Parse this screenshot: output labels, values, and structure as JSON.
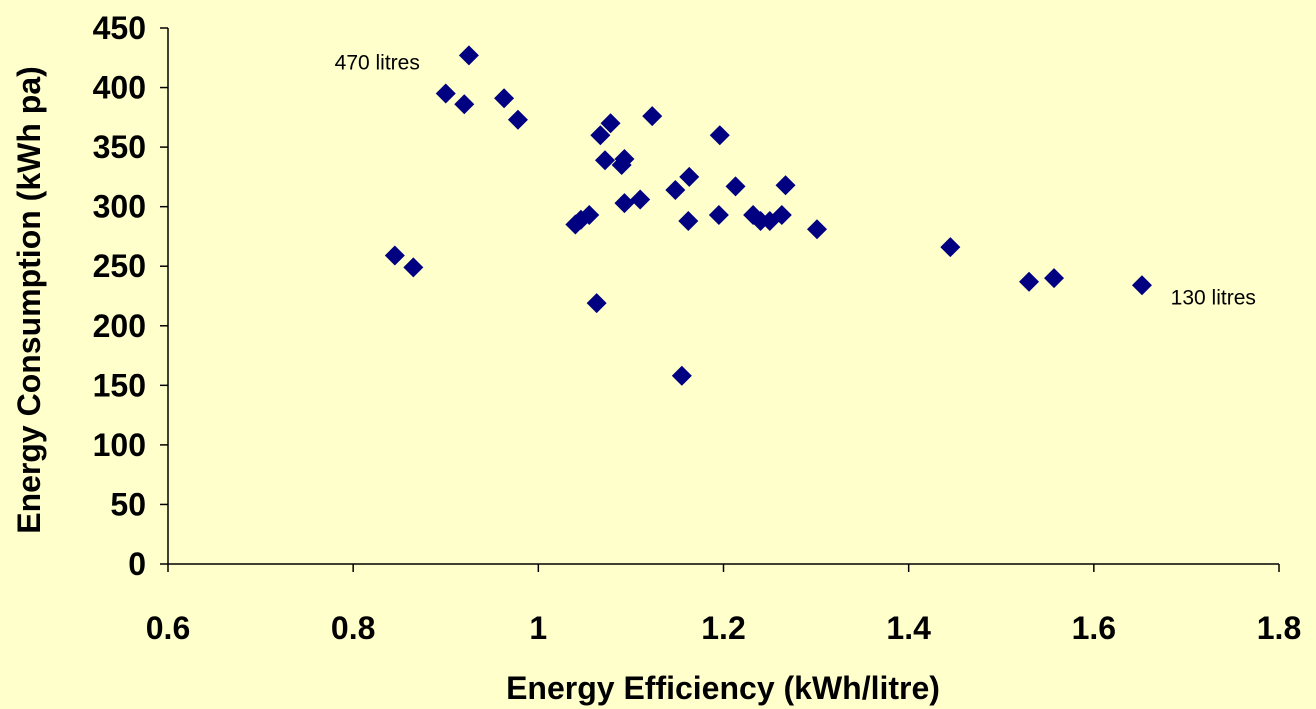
{
  "chart_data": {
    "type": "scatter",
    "title": "",
    "xlabel": "Energy Efficiency (kWh/litre)",
    "ylabel": "Energy Consumption (kWh pa)",
    "xlim": [
      0.6,
      1.8
    ],
    "ylim": [
      0,
      450
    ],
    "xticks": [
      0.6,
      0.8,
      1,
      1.2,
      1.4,
      1.6,
      1.8
    ],
    "yticks": [
      0,
      50,
      100,
      150,
      200,
      250,
      300,
      350,
      400,
      450
    ],
    "grid": false,
    "marker": "diamond",
    "marker_color": "#000080",
    "points": [
      {
        "x": 0.845,
        "y": 259
      },
      {
        "x": 0.865,
        "y": 249
      },
      {
        "x": 0.9,
        "y": 395
      },
      {
        "x": 0.92,
        "y": 386
      },
      {
        "x": 0.925,
        "y": 427
      },
      {
        "x": 0.963,
        "y": 391
      },
      {
        "x": 0.978,
        "y": 373
      },
      {
        "x": 1.04,
        "y": 285
      },
      {
        "x": 1.046,
        "y": 289
      },
      {
        "x": 1.055,
        "y": 293
      },
      {
        "x": 1.063,
        "y": 219
      },
      {
        "x": 1.067,
        "y": 360
      },
      {
        "x": 1.072,
        "y": 339
      },
      {
        "x": 1.078,
        "y": 370
      },
      {
        "x": 1.09,
        "y": 335
      },
      {
        "x": 1.093,
        "y": 340
      },
      {
        "x": 1.093,
        "y": 303
      },
      {
        "x": 1.11,
        "y": 306
      },
      {
        "x": 1.123,
        "y": 376
      },
      {
        "x": 1.148,
        "y": 314
      },
      {
        "x": 1.155,
        "y": 158
      },
      {
        "x": 1.162,
        "y": 288
      },
      {
        "x": 1.163,
        "y": 325
      },
      {
        "x": 1.195,
        "y": 293
      },
      {
        "x": 1.196,
        "y": 360
      },
      {
        "x": 1.213,
        "y": 317
      },
      {
        "x": 1.232,
        "y": 293
      },
      {
        "x": 1.24,
        "y": 288
      },
      {
        "x": 1.25,
        "y": 288
      },
      {
        "x": 1.263,
        "y": 293
      },
      {
        "x": 1.267,
        "y": 318
      },
      {
        "x": 1.301,
        "y": 281
      },
      {
        "x": 1.445,
        "y": 266
      },
      {
        "x": 1.53,
        "y": 237
      },
      {
        "x": 1.557,
        "y": 240
      },
      {
        "x": 1.652,
        "y": 234
      }
    ],
    "annotations": [
      {
        "text": "470 litres",
        "x": 0.78,
        "y": 415
      },
      {
        "text": "130 litres",
        "x": 1.683,
        "y": 218
      }
    ]
  }
}
